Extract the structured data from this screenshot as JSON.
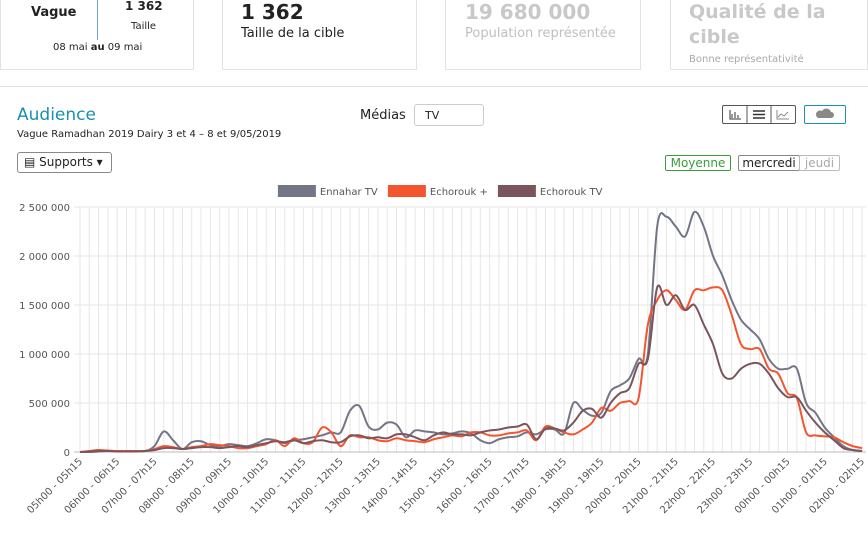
{
  "header": {
    "cards": [
      {
        "title": "Vague",
        "value": "1 362",
        "value_label": "Taille",
        "dates": [
          "08 mai ",
          "au",
          " 09 mai"
        ]
      },
      {
        "value": "1 362",
        "label": "Taille de la cible"
      },
      {
        "value": "19 680 000",
        "label": "Population représentée"
      },
      {
        "value": "Qualité de la cible",
        "label": "Bonne représentativité"
      }
    ]
  },
  "panel": {
    "title": "Audience",
    "subtitle": "Vague Ramadhan 2019 Dairy 3 et 4 – 8 et 9/05/2019",
    "media_label": "Médias",
    "media_value": "TV",
    "supports": "Supports",
    "buttons": [
      "Moyenne",
      "mercredi",
      "jeudi"
    ]
  },
  "chart_data": {
    "type": "line",
    "categories": [
      "05h00 - 05h15",
      null,
      null,
      null,
      "06h00 - 06h15",
      null,
      null,
      null,
      "07h00 - 07h15",
      null,
      null,
      null,
      "08h00 - 08h15",
      null,
      null,
      null,
      "09h00 - 09h15",
      null,
      null,
      null,
      "10h00 - 10h15",
      null,
      null,
      null,
      "11h00 - 11h15",
      null,
      null,
      null,
      "12h00 - 12h15",
      null,
      null,
      null,
      "13h00 - 13h15",
      null,
      null,
      null,
      "14h00 - 14h15",
      null,
      null,
      null,
      "15h00 - 15h15",
      null,
      null,
      null,
      "16h00 - 16h15",
      null,
      null,
      null,
      "17h00 - 17h15",
      null,
      null,
      null,
      "18h00 - 18h15",
      null,
      null,
      null,
      "19h00 - 19h15",
      null,
      null,
      null,
      "20h00 - 20h15",
      null,
      null,
      null,
      "21h00 - 21h15",
      null,
      null,
      null,
      "22h00 - 22h15",
      null,
      null,
      null,
      "23h00 - 23h15",
      null,
      null,
      null,
      "00h00 - 00h15",
      null,
      null,
      null,
      "01h00 - 01h15",
      null,
      null,
      null,
      "02h00 - 02h15"
    ],
    "series": [
      {
        "name": "Ennahar TV",
        "color": "#737686",
        "values": [
          0,
          0,
          5000,
          10000,
          10000,
          10000,
          10000,
          10000,
          60000,
          210000,
          120000,
          30000,
          100000,
          110000,
          70000,
          60000,
          80000,
          70000,
          60000,
          90000,
          130000,
          120000,
          90000,
          120000,
          130000,
          150000,
          170000,
          200000,
          200000,
          420000,
          470000,
          260000,
          230000,
          300000,
          280000,
          150000,
          220000,
          210000,
          200000,
          180000,
          190000,
          210000,
          190000,
          120000,
          90000,
          130000,
          150000,
          160000,
          200000,
          180000,
          230000,
          230000,
          190000,
          500000,
          430000,
          370000,
          400000,
          620000,
          680000,
          750000,
          950000,
          1000000,
          2300000,
          2400000,
          2300000,
          2200000,
          2450000,
          2300000,
          2000000,
          1800000,
          1550000,
          1350000,
          1250000,
          1150000,
          950000,
          850000,
          850000,
          850000,
          500000,
          400000,
          250000,
          150000,
          60000,
          20000,
          10000
        ]
      },
      {
        "name": "Echorouk +",
        "color": "#f4552f",
        "values": [
          0,
          10000,
          20000,
          15000,
          10000,
          10000,
          10000,
          10000,
          30000,
          60000,
          50000,
          30000,
          50000,
          60000,
          80000,
          70000,
          60000,
          40000,
          40000,
          60000,
          80000,
          120000,
          60000,
          140000,
          90000,
          100000,
          250000,
          200000,
          60000,
          170000,
          150000,
          150000,
          120000,
          110000,
          140000,
          120000,
          110000,
          100000,
          130000,
          150000,
          170000,
          160000,
          200000,
          200000,
          170000,
          170000,
          190000,
          200000,
          220000,
          120000,
          260000,
          240000,
          200000,
          180000,
          230000,
          300000,
          450000,
          420000,
          500000,
          520000,
          550000,
          1300000,
          1550000,
          1650000,
          1550000,
          1450000,
          1650000,
          1650000,
          1680000,
          1650000,
          1400000,
          1100000,
          1050000,
          1050000,
          850000,
          800000,
          600000,
          550000,
          200000,
          170000,
          160000,
          150000,
          100000,
          60000,
          40000
        ]
      },
      {
        "name": "Echorouk TV",
        "color": "#7a555c",
        "values": [
          0,
          5000,
          10000,
          10000,
          5000,
          5000,
          5000,
          10000,
          20000,
          40000,
          40000,
          30000,
          40000,
          50000,
          50000,
          40000,
          50000,
          60000,
          50000,
          70000,
          90000,
          110000,
          100000,
          120000,
          90000,
          110000,
          120000,
          100000,
          100000,
          160000,
          170000,
          140000,
          150000,
          140000,
          180000,
          180000,
          150000,
          120000,
          170000,
          200000,
          180000,
          180000,
          170000,
          200000,
          220000,
          230000,
          250000,
          260000,
          280000,
          130000,
          240000,
          240000,
          220000,
          300000,
          420000,
          440000,
          350000,
          500000,
          600000,
          650000,
          900000,
          950000,
          1680000,
          1500000,
          1600000,
          1450000,
          1500000,
          1300000,
          1100000,
          800000,
          750000,
          850000,
          900000,
          900000,
          800000,
          650000,
          560000,
          560000,
          420000,
          300000,
          200000,
          120000,
          40000,
          20000,
          10000
        ]
      }
    ],
    "ylim": [
      0,
      2500000
    ],
    "yticks": [
      0,
      {
        "value": 500000,
        "label": "500 000"
      },
      {
        "value": 1000000,
        "label": "1 000 000"
      },
      {
        "value": 1500000,
        "label": "1 500 000"
      },
      {
        "value": 2000000,
        "label": "2 000 000"
      },
      {
        "value": 2500000,
        "label": "2 500 000"
      }
    ],
    "grid": true,
    "legend": "top"
  }
}
